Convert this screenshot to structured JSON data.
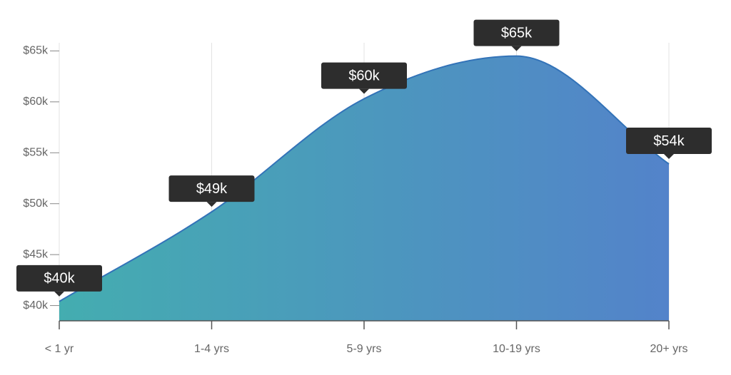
{
  "chart_data": {
    "type": "area",
    "categories": [
      "< 1 yr",
      "1-4 yrs",
      "5-9 yrs",
      "10-19 yrs",
      "20+ yrs"
    ],
    "values": [
      40.4,
      49.2,
      60.3,
      64.5,
      53.9
    ],
    "value_labels": [
      "$40k",
      "$49k",
      "$60k",
      "$65k",
      "$54k"
    ],
    "ylim": [
      38.5,
      65.8
    ],
    "yticks": [
      {
        "value": 40,
        "label": "$40k"
      },
      {
        "value": 45,
        "label": "$45k"
      },
      {
        "value": 50,
        "label": "$50k"
      },
      {
        "value": 55,
        "label": "$55k"
      },
      {
        "value": 60,
        "label": "$60k"
      },
      {
        "value": 65,
        "label": "$65k"
      }
    ],
    "gradient": [
      "#44adb0",
      "#5383ca"
    ],
    "line_color": "#3373b8",
    "grid": true
  }
}
